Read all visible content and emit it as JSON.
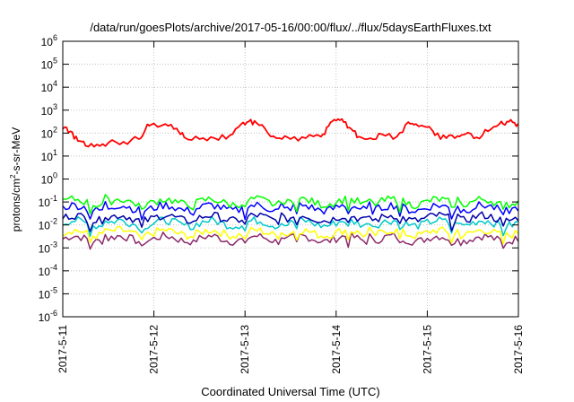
{
  "chart_data": {
    "type": "line",
    "title": "/data/run/goesPlots/archive/2017-05-16/00:00/flux/../flux/5daysEarthFluxes.txt",
    "xlabel": "Coordinated Universal Time (UTC)",
    "ylabel": "protons/cm²-s-sr-MeV",
    "yscale": "log",
    "ylim": [
      1e-06,
      1000000.0
    ],
    "xlim": [
      "2017-05-11",
      "2017-05-16"
    ],
    "grid": true,
    "x_ticks": [
      "2017-5-11",
      "2017-5-12",
      "2017-5-13",
      "2017-5-14",
      "2017-5-15",
      "2017-5-16"
    ],
    "y_ticks": [
      {
        "base": "10",
        "exp": "-6",
        "value": 1e-06
      },
      {
        "base": "10",
        "exp": "-5",
        "value": 1e-05
      },
      {
        "base": "10",
        "exp": "-4",
        "value": 0.0001
      },
      {
        "base": "10",
        "exp": "-3",
        "value": 0.001
      },
      {
        "base": "10",
        "exp": "-2",
        "value": 0.01
      },
      {
        "base": "10",
        "exp": "-1",
        "value": 0.1
      },
      {
        "base": "10",
        "exp": "0",
        "value": 1
      },
      {
        "base": "10",
        "exp": "1",
        "value": 10
      },
      {
        "base": "10",
        "exp": "2",
        "value": 100
      },
      {
        "base": "10",
        "exp": "3",
        "value": 1000
      },
      {
        "base": "10",
        "exp": "4",
        "value": 10000
      },
      {
        "base": "10",
        "exp": "5",
        "value": 100000
      },
      {
        "base": "10",
        "exp": "6",
        "value": 1000000
      }
    ],
    "series": [
      {
        "color": "#ff0000",
        "x": [
          "2017-05-11 00:00",
          "2017-05-11 02:00",
          "2017-05-11 04:00",
          "2017-05-11 06:00",
          "2017-05-11 09:00",
          "2017-05-11 12:00",
          "2017-05-11 16:00",
          "2017-05-11 20:00",
          "2017-05-11 22:00",
          "2017-05-11 23:00",
          "2017-05-12 03:00",
          "2017-05-12 06:00",
          "2017-05-12 08:00",
          "2017-05-12 12:00",
          "2017-05-12 16:00",
          "2017-05-12 20:00",
          "2017-05-12 23:00",
          "2017-05-13 01:00",
          "2017-05-13 03:00",
          "2017-05-13 06:00",
          "2017-05-13 09:00",
          "2017-05-13 12:00",
          "2017-05-13 16:00",
          "2017-05-13 20:00",
          "2017-05-13 22:00",
          "2017-05-14 00:00",
          "2017-05-14 02:00",
          "2017-05-14 04:00",
          "2017-05-14 06:00",
          "2017-05-14 09:00",
          "2017-05-14 12:00",
          "2017-05-14 16:00",
          "2017-05-14 19:00",
          "2017-05-14 21:00",
          "2017-05-15 00:00",
          "2017-05-15 02:00",
          "2017-05-15 05:00",
          "2017-05-15 08:00",
          "2017-05-15 10:00",
          "2017-05-15 13:00",
          "2017-05-15 16:00",
          "2017-05-15 19:00",
          "2017-05-15 21:00",
          "2017-05-15 23:00",
          "2017-05-16 00:00"
        ],
        "values": [
          150,
          120,
          45,
          28,
          32,
          38,
          42,
          55,
          180,
          220,
          250,
          160,
          65,
          55,
          60,
          80,
          250,
          320,
          280,
          100,
          60,
          55,
          60,
          70,
          200,
          350,
          300,
          150,
          70,
          60,
          90,
          70,
          300,
          250,
          180,
          80,
          60,
          75,
          90,
          65,
          120,
          250,
          320,
          280,
          250
        ]
      },
      {
        "color": "#00ff00",
        "values_mean": 0.1
      },
      {
        "color": "#0000ff",
        "values_mean": 0.055
      },
      {
        "color": "#0000aa",
        "values_mean": 0.02
      },
      {
        "color": "#00c8c8",
        "values_mean": 0.012
      },
      {
        "color": "#ffff00",
        "values_mean": 0.0045
      },
      {
        "color": "#8b2a6a",
        "values_mean": 0.0025
      }
    ]
  }
}
